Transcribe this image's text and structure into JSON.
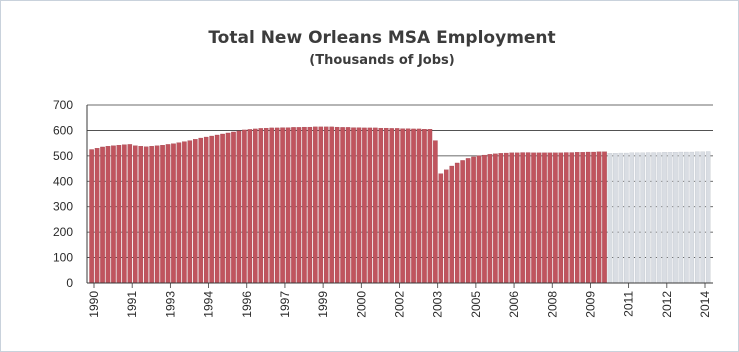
{
  "chart_data": {
    "type": "bar",
    "title": "Total New Orleans MSA Employment",
    "subtitle": "(Thousands  of Jobs)",
    "xlabel": "",
    "ylabel": "",
    "ylim": [
      0,
      700
    ],
    "y_ticks": [
      0,
      100,
      200,
      300,
      400,
      500,
      600,
      700
    ],
    "x_tick_labels": [
      "1990",
      "1991",
      "1993",
      "1994",
      "1996",
      "1997",
      "1999",
      "2000",
      "2002",
      "2003",
      "2005",
      "2006",
      "2008",
      "2009",
      "2011",
      "2012",
      "2014"
    ],
    "grid": "horizontal",
    "legend": "none",
    "colors": {
      "actual": "#c0545e",
      "forecast": "#d9dde3",
      "bar_edge": "#ffffff",
      "grid": "#3a3a3a"
    },
    "series": [
      {
        "name": "",
        "style": "actual",
        "values": [
          525,
          530,
          535,
          538,
          540,
          542,
          544,
          545,
          540,
          538,
          536,
          538,
          540,
          542,
          545,
          548,
          552,
          556,
          560,
          565,
          570,
          574,
          578,
          582,
          586,
          590,
          594,
          598,
          602,
          604,
          606,
          608,
          609,
          610,
          610,
          611,
          611,
          612,
          612,
          613,
          613,
          614,
          614,
          614,
          614,
          613,
          612,
          612,
          611,
          611,
          610,
          610,
          610,
          609,
          609,
          608,
          608,
          607,
          607,
          606,
          606,
          605,
          605,
          560,
          430,
          445,
          460,
          472,
          482,
          490,
          496,
          500,
          503,
          506,
          508,
          510,
          511,
          512,
          512,
          513,
          513,
          512,
          512,
          512,
          512,
          512,
          512,
          513,
          513,
          514,
          514,
          515,
          515,
          516,
          516
        ]
      },
      {
        "name": "",
        "style": "forecast",
        "values": [
          510,
          510,
          511,
          511,
          512,
          512,
          512,
          513,
          513,
          513,
          514,
          514,
          514,
          515,
          515,
          515,
          516,
          516,
          517
        ]
      }
    ]
  }
}
